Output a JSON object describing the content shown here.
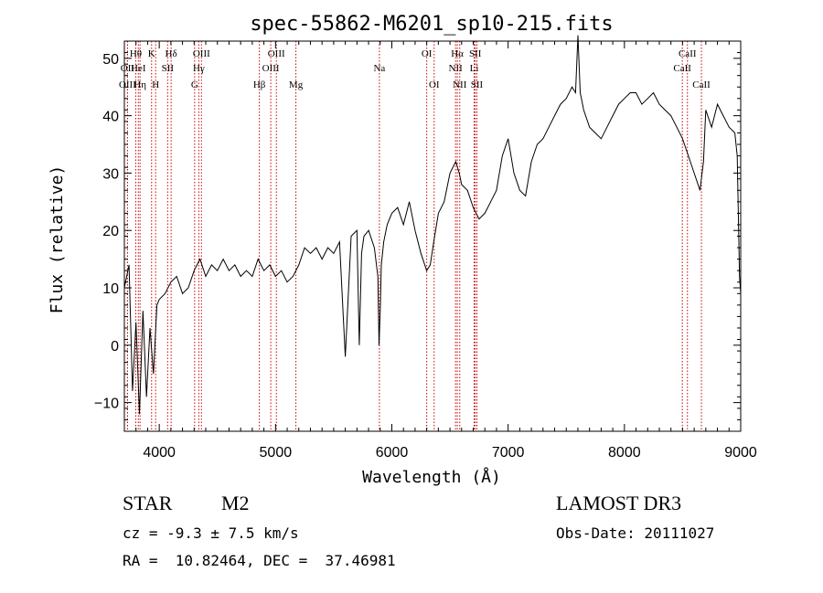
{
  "chart_data": {
    "type": "line",
    "title": "spec-55862-M6201_sp10-215.fits",
    "xlabel": "Wavelength (Å)",
    "ylabel": "Flux (relative)",
    "xlim": [
      3700,
      9000
    ],
    "ylim": [
      -15,
      53
    ],
    "xticks": [
      4000,
      5000,
      6000,
      7000,
      8000,
      9000
    ],
    "yticks": [
      -10,
      0,
      10,
      20,
      30,
      40,
      50
    ],
    "line_color": "#000000",
    "marker_color": "#cc0000",
    "spectrum": {
      "name": "flux",
      "x": [
        3700,
        3740,
        3770,
        3800,
        3830,
        3860,
        3890,
        3920,
        3950,
        3980,
        4000,
        4050,
        4100,
        4150,
        4200,
        4250,
        4300,
        4350,
        4400,
        4450,
        4500,
        4550,
        4600,
        4650,
        4700,
        4750,
        4800,
        4850,
        4900,
        4950,
        5000,
        5050,
        5100,
        5150,
        5200,
        5250,
        5300,
        5350,
        5400,
        5450,
        5500,
        5550,
        5600,
        5650,
        5700,
        5720,
        5740,
        5760,
        5800,
        5850,
        5880,
        5890,
        5900,
        5910,
        5930,
        5960,
        6000,
        6050,
        6100,
        6150,
        6200,
        6250,
        6300,
        6330,
        6360,
        6400,
        6450,
        6500,
        6550,
        6580,
        6600,
        6650,
        6700,
        6750,
        6800,
        6850,
        6900,
        6950,
        7000,
        7050,
        7100,
        7150,
        7200,
        7250,
        7300,
        7350,
        7400,
        7450,
        7500,
        7550,
        7580,
        7600,
        7620,
        7650,
        7700,
        7750,
        7800,
        7850,
        7900,
        7950,
        8000,
        8050,
        8100,
        8150,
        8200,
        8250,
        8300,
        8350,
        8400,
        8450,
        8500,
        8550,
        8600,
        8650,
        8680,
        8700,
        8750,
        8800,
        8850,
        8900,
        8950,
        8970,
        8990,
        9000
      ],
      "y": [
        10,
        14,
        -8,
        4,
        -12,
        6,
        -9,
        3,
        -5,
        7,
        8,
        9,
        11,
        12,
        9,
        10,
        13,
        15,
        12,
        14,
        13,
        15,
        13,
        14,
        12,
        13,
        12,
        15,
        13,
        14,
        12,
        13,
        11,
        12,
        14,
        17,
        16,
        17,
        15,
        17,
        16,
        18,
        -2,
        19,
        20,
        0,
        16,
        19,
        20,
        17,
        12,
        0,
        6,
        14,
        18,
        21,
        23,
        24,
        21,
        25,
        20,
        16,
        13,
        14,
        18,
        23,
        25,
        30,
        32,
        30,
        28,
        27,
        24,
        22,
        23,
        25,
        27,
        33,
        36,
        30,
        27,
        26,
        32,
        35,
        36,
        38,
        40,
        42,
        43,
        45,
        44,
        54,
        44,
        41,
        38,
        37,
        36,
        38,
        40,
        42,
        43,
        44,
        44,
        42,
        43,
        44,
        42,
        41,
        40,
        38,
        36,
        33,
        30,
        27,
        32,
        41,
        38,
        42,
        40,
        38,
        37,
        33,
        12,
        9
      ]
    },
    "lines": [
      {
        "label": "Hθ",
        "x": 3798,
        "row": 1
      },
      {
        "label": "OII",
        "x": 3727,
        "row": 2
      },
      {
        "label": "OIII",
        "x": 3727,
        "row": 3
      },
      {
        "label": "HeI",
        "x": 3820,
        "row": 2
      },
      {
        "label": "Hη",
        "x": 3835,
        "row": 3
      },
      {
        "label": "K",
        "x": 3934,
        "row": 1
      },
      {
        "label": "SII",
        "x": 4072,
        "row": 2
      },
      {
        "label": "H",
        "x": 3969,
        "row": 3
      },
      {
        "label": "Hδ",
        "x": 4102,
        "row": 1
      },
      {
        "label": "OIII",
        "x": 4363,
        "row": 1
      },
      {
        "label": "Hγ",
        "x": 4340,
        "row": 2
      },
      {
        "label": "G",
        "x": 4304,
        "row": 3
      },
      {
        "label": "Hβ",
        "x": 4861,
        "row": 3
      },
      {
        "label": "OIII",
        "x": 5007,
        "row": 1
      },
      {
        "label": "OIII",
        "x": 4959,
        "row": 2
      },
      {
        "label": "Mg",
        "x": 5175,
        "row": 3
      },
      {
        "label": "Na",
        "x": 5893,
        "row": 2
      },
      {
        "label": "OI",
        "x": 6300,
        "row": 1
      },
      {
        "label": "OI",
        "x": 6364,
        "row": 3
      },
      {
        "label": "Hα",
        "x": 6563,
        "row": 1
      },
      {
        "label": "NII",
        "x": 6548,
        "row": 2
      },
      {
        "label": "NII",
        "x": 6584,
        "row": 3
      },
      {
        "label": "SII",
        "x": 6717,
        "row": 1
      },
      {
        "label": "Li",
        "x": 6708,
        "row": 2
      },
      {
        "label": "SII",
        "x": 6731,
        "row": 3
      },
      {
        "label": "CaII",
        "x": 8542,
        "row": 1
      },
      {
        "label": "CaII",
        "x": 8498,
        "row": 2
      },
      {
        "label": "CaII",
        "x": 8662,
        "row": 3
      }
    ]
  },
  "info": {
    "class_label": "STAR",
    "subclass": "M2",
    "survey": "LAMOST DR3",
    "cz": "cz = -9.3 ± 7.5 km/s",
    "obs_date": "Obs-Date: 20111027",
    "coords": "RA =  10.82464, DEC =  37.46981"
  }
}
